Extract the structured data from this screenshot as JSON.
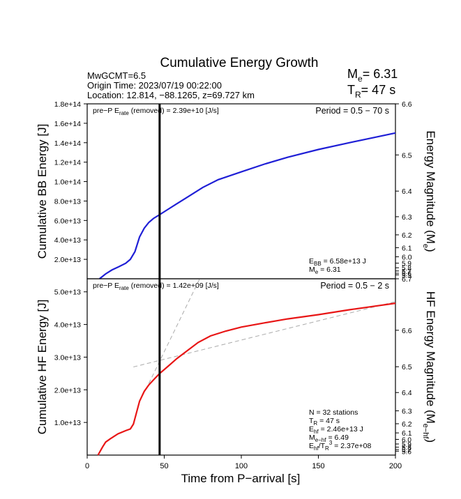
{
  "title": "Cumulative Energy Growth",
  "header": {
    "mw": "MwGCMT=6.5",
    "origin": "Origin Time: 2023/07/19 00:22:00",
    "location": "Location: 12.814, −88.1265, z=69.727 km",
    "me_label": "M",
    "me_sub": "e",
    "me_value": "= 6.31",
    "tr_label": "T",
    "tr_sub": "R",
    "tr_value": "= 47 s"
  },
  "colors": {
    "bb": "#1f1fd6",
    "hf": "#e81616",
    "marker": "#000000",
    "guide": "#aaaaaa"
  },
  "chart_data": [
    {
      "type": "line",
      "name": "bb-panel",
      "period_label": "Period = 0.5 − 70 s",
      "erate_text": {
        "a": "pre−P E",
        "sub": "rate",
        "b": " (removed) = 2.39e+10 [J/s]"
      },
      "ylabel": "Cumulative BB Energy [J]",
      "y2label": "Energy Magnitude (M",
      "y2label_sub": "e",
      "y2label_end": ")",
      "xlim": [
        0,
        200
      ],
      "ylim": [
        0,
        180000000000000.0
      ],
      "yticks": [
        20000000000000.0,
        40000000000000.0,
        60000000000000.0,
        80000000000000.0,
        100000000000000.0,
        120000000000000.0,
        140000000000000.0,
        160000000000000.0,
        180000000000000.0
      ],
      "ytick_labels": [
        "2.0e+13",
        "4.0e+13",
        "6.0e+13",
        "8.0e+13",
        "1.0e+14",
        "1.2e+14",
        "1.4e+14",
        "1.6e+14",
        "1.8e+14"
      ],
      "mag_ticks": [
        6.0,
        6.1,
        6.2,
        6.3,
        6.4,
        6.5,
        6.6
      ],
      "mag_tick_labels": [
        "6.0",
        "6.1",
        "6.2",
        "6.3",
        "6.4",
        "6.5",
        "6.6"
      ],
      "mag_small_labels": [
        "5.9",
        "5.8",
        "5.7",
        "5.6",
        "5.5"
      ],
      "x": [
        8,
        12,
        16,
        20,
        25,
        28,
        31,
        34,
        37,
        40,
        43,
        47,
        52,
        58,
        65,
        75,
        85,
        100,
        115,
        130,
        150,
        170,
        185,
        200
      ],
      "y": [
        0,
        5000000000000.0,
        9000000000000.0,
        12000000000000.0,
        16000000000000.0,
        20000000000000.0,
        28000000000000.0,
        43000000000000.0,
        52000000000000.0,
        58000000000000.0,
        62000000000000.0,
        66000000000000.0,
        71000000000000.0,
        77000000000000.0,
        84000000000000.0,
        94000000000000.0,
        102000000000000.0,
        110000000000000.0,
        118000000000000.0,
        125000000000000.0,
        133000000000000.0,
        140000000000000.0,
        145000000000000.0,
        150000000000000.0
      ],
      "note_lines": [
        {
          "a": "E",
          "sub": "BB",
          "b": " = 6.58e+13 J"
        },
        {
          "a": "M",
          "sub": "e",
          "b": " = 6.31"
        }
      ]
    },
    {
      "type": "line",
      "name": "hf-panel",
      "period_label": "Period = 0.5 − 2 s",
      "erate_text": {
        "a": "pre−P E",
        "sub": "rate",
        "b": " (removed) = 1.42e+09 [J/s]"
      },
      "ylabel": "Cumulative HF Energy [J]",
      "y2label": "HF Energy Magnitude (M",
      "y2label_sub": "e−hf",
      "y2label_end": ")",
      "xlabel": "Time from P−arrival [s]",
      "xlim": [
        0,
        200
      ],
      "ylim": [
        0,
        54000000000000.0
      ],
      "xticks": [
        0,
        50,
        100,
        150,
        200
      ],
      "xtick_labels": [
        "0",
        "50",
        "100",
        "150",
        "200"
      ],
      "yticks": [
        10000000000000.0,
        20000000000000.0,
        30000000000000.0,
        40000000000000.0,
        50000000000000.0
      ],
      "ytick_labels": [
        "1.0e+13",
        "2.0e+13",
        "3.0e+13",
        "4.0e+13",
        "5.0e+13"
      ],
      "mag_ticks": [
        6.1,
        6.2,
        6.3,
        6.4,
        6.5,
        6.6,
        6.7
      ],
      "mag_tick_labels": [
        "6.1",
        "6.2",
        "6.3",
        "6.4",
        "6.5",
        "6.6",
        "6.7"
      ],
      "mag_small_labels": [
        "6.0",
        "5.9",
        "5.8",
        "5.7",
        "5.6"
      ],
      "x": [
        7,
        10,
        12,
        15,
        20,
        25,
        28,
        30,
        32,
        34,
        37,
        40,
        44,
        47,
        52,
        58,
        65,
        72,
        80,
        90,
        100,
        115,
        130,
        150,
        170,
        185,
        200
      ],
      "y": [
        0,
        2500000000000.0,
        4000000000000.0,
        5000000000000.0,
        6500000000000.0,
        7500000000000.0,
        8000000000000.0,
        9500000000000.0,
        13000000000000.0,
        16500000000000.0,
        19500000000000.0,
        21500000000000.0,
        23500000000000.0,
        25000000000000.0,
        27000000000000.0,
        29500000000000.0,
        32000000000000.0,
        34500000000000.0,
        36500000000000.0,
        38000000000000.0,
        39200000000000.0,
        40500000000000.0,
        41700000000000.0,
        43000000000000.0,
        44500000000000.0,
        45500000000000.0,
        46500000000000.0
      ],
      "note_lines": [
        {
          "a": "N = 32 stations",
          "sub": "",
          "b": ""
        },
        {
          "a": "T",
          "sub": "R",
          "b": " = 47  s"
        },
        {
          "a": "E",
          "sub": "hf",
          "b": " = 2.46e+13 J"
        },
        {
          "a": "M",
          "sub": "e−hf",
          "b": " = 6.49"
        },
        {
          "a": "E",
          "sub": "hf",
          "b": "/T",
          "sub2": "R",
          "sup": "3",
          "c": " =  2.37e+08"
        }
      ]
    }
  ],
  "marker_time": 47
}
